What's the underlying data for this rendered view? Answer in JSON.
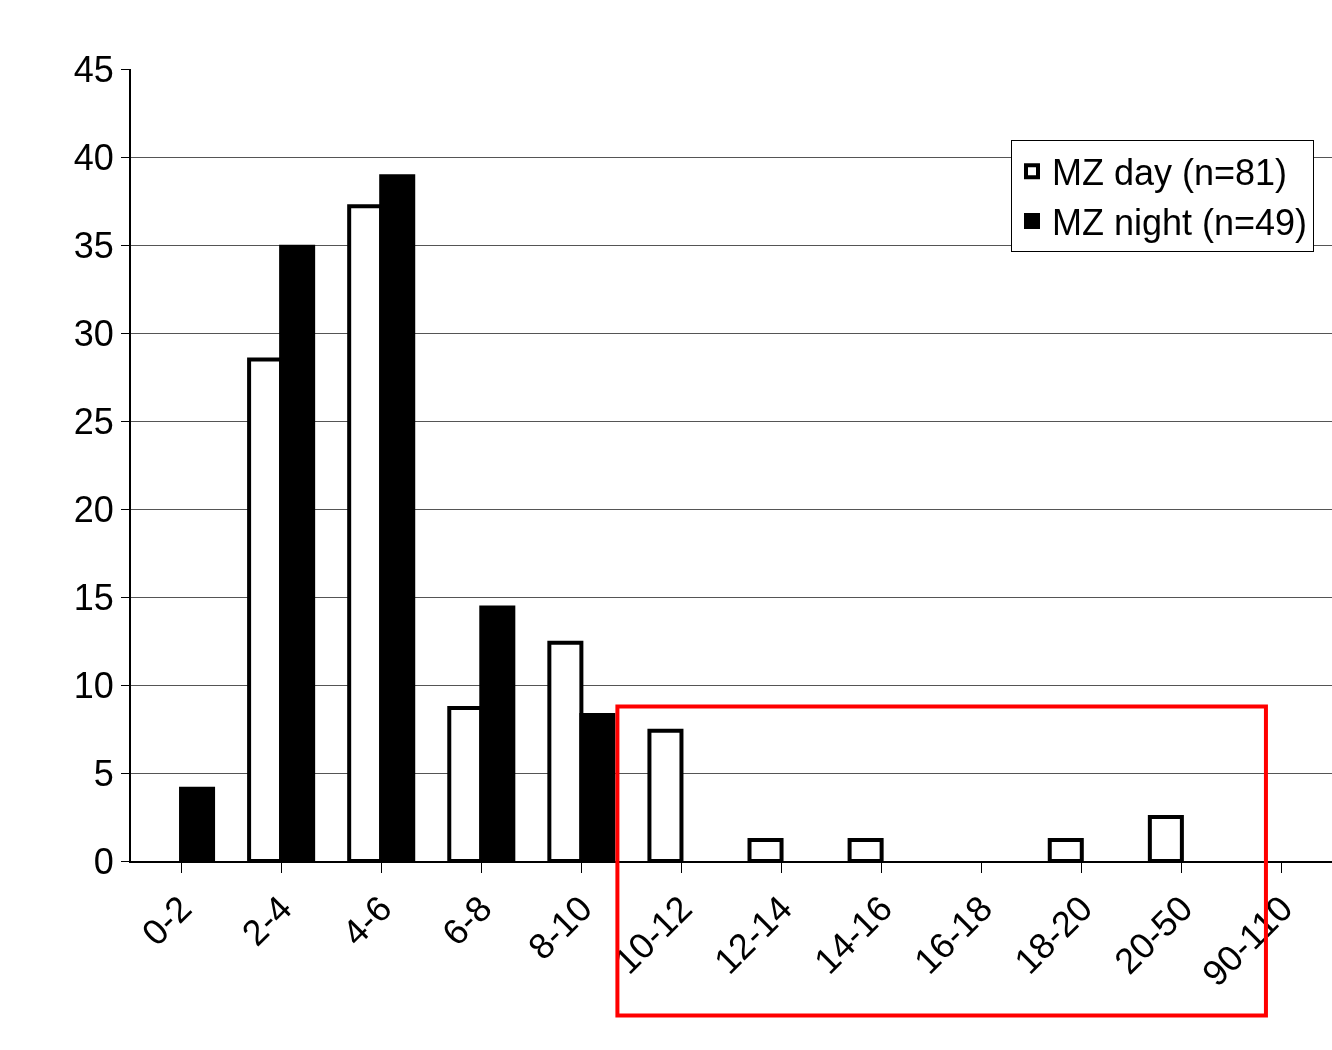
{
  "chart_data": {
    "type": "bar",
    "categories": [
      "0-2",
      "2-4",
      "4-6",
      "6-8",
      "8-10",
      "10-12",
      "12-14",
      "14-16",
      "16-18",
      "18-20",
      "20-50",
      "90-110"
    ],
    "series": [
      {
        "name": "MZ day (n=81)",
        "color": "#ffffff",
        "values": [
          null,
          28.5,
          37.2,
          8.7,
          12.4,
          7.4,
          1.2,
          1.2,
          null,
          1.2,
          2.5,
          null
        ]
      },
      {
        "name": "MZ night (n=49)",
        "color": "#000000",
        "values": [
          4.1,
          34.9,
          38.9,
          14.4,
          8.3,
          null,
          null,
          null,
          null,
          null,
          null,
          null
        ]
      }
    ],
    "ylim": [
      0,
      45
    ],
    "yticks": [
      0,
      5,
      10,
      15,
      20,
      25,
      30,
      35,
      40,
      45
    ],
    "grid": "y",
    "legend": "top right"
  }
}
